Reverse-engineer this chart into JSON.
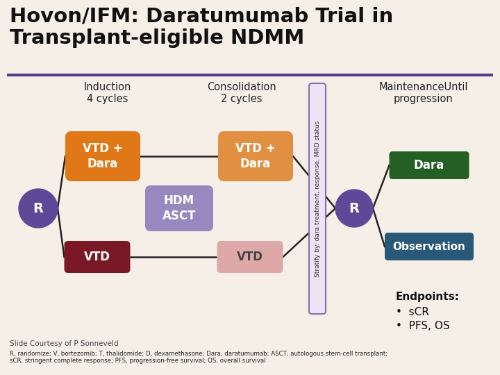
{
  "title": "Hovon/IFM: Daratumumab Trial in\nTransplant-eligible NDMM",
  "title_fontsize": 21,
  "bg_color": "#f5efe8",
  "title_color": "#111111",
  "purple_line_color": "#5a3a8a",
  "induction_label": "Induction\n4 cycles",
  "consolidation_label": "Consolidation\n2 cycles",
  "maintenance_label": "MaintenanceUntil\nprogression",
  "vtd_dara_color": "#e07818",
  "vtd_color": "#7a1828",
  "vtd_dara2_color": "#e09040",
  "vtd2_color": "#dea8a8",
  "hdm_asct_color": "#9888c0",
  "dara_maint_color": "#246024",
  "obs_color": "#2a5878",
  "r_circle_color": "#604898",
  "line_color": "#222222",
  "stratify_text": "Stratify by: dara treatment, response, MRD status",
  "strat_border_color": "#8870b0",
  "strat_fill_color": "#ece4f4",
  "endpoints_title": "Endpoints:",
  "endpoint1": "•  sCR",
  "endpoint2": "•  PFS, OS",
  "slide_courtesy": "Slide Courtesy of P Sonneveld",
  "footnote": "R, randomize; V, bortezomib; T, thalidomide; D, dexamethasone; Dara, daratumumab; ASCT, autologous stem-cell transplant;\nsCR, stringent complete response; PFS, progression-free survival; OS, overall survival"
}
